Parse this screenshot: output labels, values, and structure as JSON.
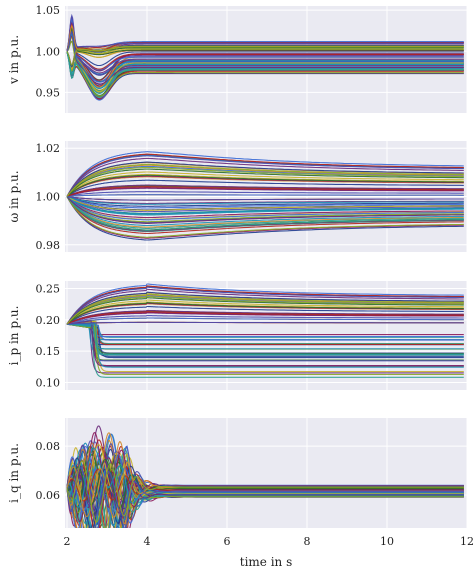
{
  "chart_data": [
    {
      "type": "line",
      "ylabel": "v in p.u.",
      "xlim": [
        1.95,
        12
      ],
      "ylim": [
        0.925,
        1.055
      ],
      "yticks": [
        "0.95",
        "1.00",
        "1.05"
      ],
      "ytick_values": [
        0.95,
        1.0,
        1.05
      ],
      "xticks": [
        2,
        4,
        6,
        8,
        10,
        12
      ],
      "grid": true,
      "series_count": 60,
      "initial_value": 1.0,
      "final_range": [
        0.972,
        1.012
      ],
      "transient": "spike to about 1.05 just after t = 2 s, dip to about 0.935 near t = 2.8 s, settling by t = 4 s"
    },
    {
      "type": "line",
      "ylabel": "ω in p.u.",
      "xlim": [
        1.95,
        12
      ],
      "ylim": [
        0.977,
        1.023
      ],
      "yticks": [
        "0.98",
        "1.00",
        "1.02"
      ],
      "ytick_values": [
        0.98,
        1.0,
        1.02
      ],
      "xticks": [
        2,
        4,
        6,
        8,
        10,
        12
      ],
      "grid": true,
      "series_count": 60,
      "initial_value": 1.0,
      "peak_range": [
        0.9825,
        1.0195
      ],
      "final_range": [
        0.987,
        1.012
      ],
      "transient": "diverges from 1.00 at t = 2 s, extremes near t = 4 s, slowly relaxing"
    },
    {
      "type": "line",
      "ylabel": "i_p in p.u.",
      "xlim": [
        1.95,
        12
      ],
      "ylim": [
        0.088,
        0.262
      ],
      "yticks": [
        "0.10",
        "0.15",
        "0.20",
        "0.25"
      ],
      "ytick_values": [
        0.1,
        0.15,
        0.2,
        0.25
      ],
      "xticks": [
        2,
        4,
        6,
        8,
        10,
        12
      ],
      "grid": true,
      "series_count": 60,
      "initial_value": 0.193,
      "peak_upper": 0.258,
      "final_range": [
        0.105,
        0.235
      ],
      "transient": "upper group rises from 0.19 to about 0.25 near t = 4 s, lower group drops sharply near t = 2.6 s"
    },
    {
      "type": "line",
      "ylabel": "i_q in p.u.",
      "xlim": [
        1.95,
        12
      ],
      "ylim": [
        0.0465,
        0.0915
      ],
      "yticks": [
        "0.06",
        "0.08"
      ],
      "ytick_values": [
        0.06,
        0.08
      ],
      "xticks": [
        "2",
        "4",
        "6",
        "8",
        "10",
        "12"
      ],
      "xtick_values": [
        2,
        4,
        6,
        8,
        10,
        12
      ],
      "xlabel": "time in s",
      "grid": true,
      "series_count": 60,
      "initial_value": 0.063,
      "final_range": [
        0.06,
        0.064
      ],
      "transient": "oscillation between about 0.050 and 0.090 from t = 2 s to 3.5 s, settling near 0.062"
    }
  ],
  "colors": {
    "panel_bg": "#eaeaf2",
    "grid": "#ffffff",
    "palette": [
      "#1f3b8f",
      "#2e9e8f",
      "#8b1a5a",
      "#c9b22a",
      "#3b6bd6",
      "#6a2a7a",
      "#2f6e2a",
      "#b3261e",
      "#1b8fb5",
      "#d08a2a",
      "#4b4bb0",
      "#88aa22"
    ]
  }
}
